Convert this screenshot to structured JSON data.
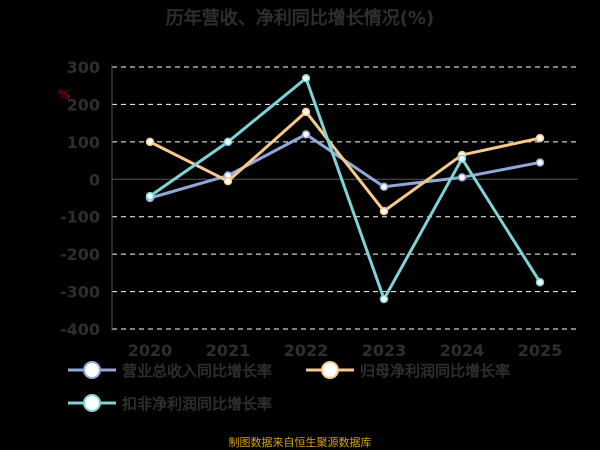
{
  "chart_data": {
    "type": "line",
    "title": "历年营收、净利同比增长情况(%)",
    "unit_label": "%",
    "categories": [
      "2020",
      "2021",
      "2022",
      "2023",
      "2024",
      "2025"
    ],
    "ylim": [
      -400,
      300
    ],
    "yticks": [
      300,
      200,
      100,
      0,
      -100,
      -200,
      -300,
      -400
    ],
    "grid": true,
    "legend_position": "bottom",
    "series": [
      {
        "name": "营业总收入同比增长率",
        "color": "#8fa8d8",
        "values": [
          -50,
          10,
          120,
          -20,
          5,
          45
        ]
      },
      {
        "name": "归母净利润同比增长率",
        "color": "#f5c98b",
        "values": [
          100,
          -5,
          180,
          -85,
          65,
          110
        ]
      },
      {
        "name": "扣非净利润同比增长率",
        "color": "#7dd3d8",
        "values": [
          -45,
          100,
          270,
          -320,
          55,
          -275
        ]
      }
    ],
    "source": "制图数据来自恒生聚源数据库"
  }
}
